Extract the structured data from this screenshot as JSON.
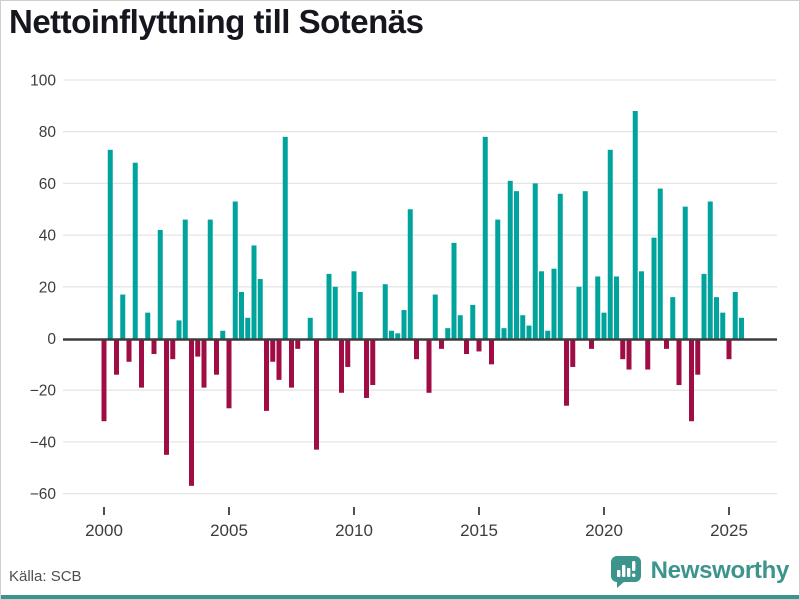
{
  "title": "Nettoinflyttning till Sotenäs",
  "footer": {
    "source_label": "Källa: SCB",
    "brand": "Newsworthy",
    "logo_icon": "bar-chart-speech-bubble-icon"
  },
  "colors": {
    "positive_bar": "#00a49c",
    "negative_bar": "#a00d45",
    "title_text": "#16161f",
    "axis_text": "#3c3c3c",
    "gridline": "#e6e6e6",
    "zero_line": "#3d3d3d",
    "source_text": "#4f4f4f",
    "brand_teal": "#3d948d",
    "background": "#ffffff"
  },
  "chart_data": {
    "type": "bar",
    "title": "Nettoinflyttning till Sotenäs",
    "series_name": "Nettoinflyttning per kvartal",
    "frequency": "quarterly",
    "start_period": "2000Q1",
    "end_period": "2025Q3",
    "x_tick_years": [
      2000,
      2005,
      2010,
      2015,
      2020,
      2025
    ],
    "y_ticks": [
      100,
      80,
      60,
      40,
      20,
      0,
      -20,
      -40,
      -60
    ],
    "ylim": [
      -63,
      103
    ],
    "grid": true,
    "legend": "none",
    "values": [
      -32,
      73,
      -14,
      17,
      -9,
      68,
      -19,
      10,
      -6,
      42,
      -45,
      -8,
      7,
      46,
      -57,
      -7,
      -19,
      46,
      -14,
      3,
      -27,
      53,
      18,
      8,
      36,
      23,
      -28,
      -9,
      -16,
      78,
      -19,
      -4,
      0,
      8,
      -43,
      0,
      25,
      20,
      -21,
      -11,
      26,
      18,
      -23,
      -18,
      0,
      21,
      3,
      2,
      11,
      50,
      -8,
      0,
      -21,
      17,
      -4,
      4,
      37,
      9,
      -6,
      13,
      -5,
      78,
      -10,
      46,
      4,
      61,
      57,
      9,
      5,
      60,
      26,
      3,
      27,
      56,
      -26,
      -11,
      20,
      57,
      -4,
      24,
      10,
      73,
      24,
      -8,
      -12,
      88,
      26,
      -12,
      39,
      58,
      -4,
      16,
      -18,
      51,
      -32,
      -14,
      25,
      53,
      16,
      10,
      -8,
      18,
      8
    ]
  }
}
